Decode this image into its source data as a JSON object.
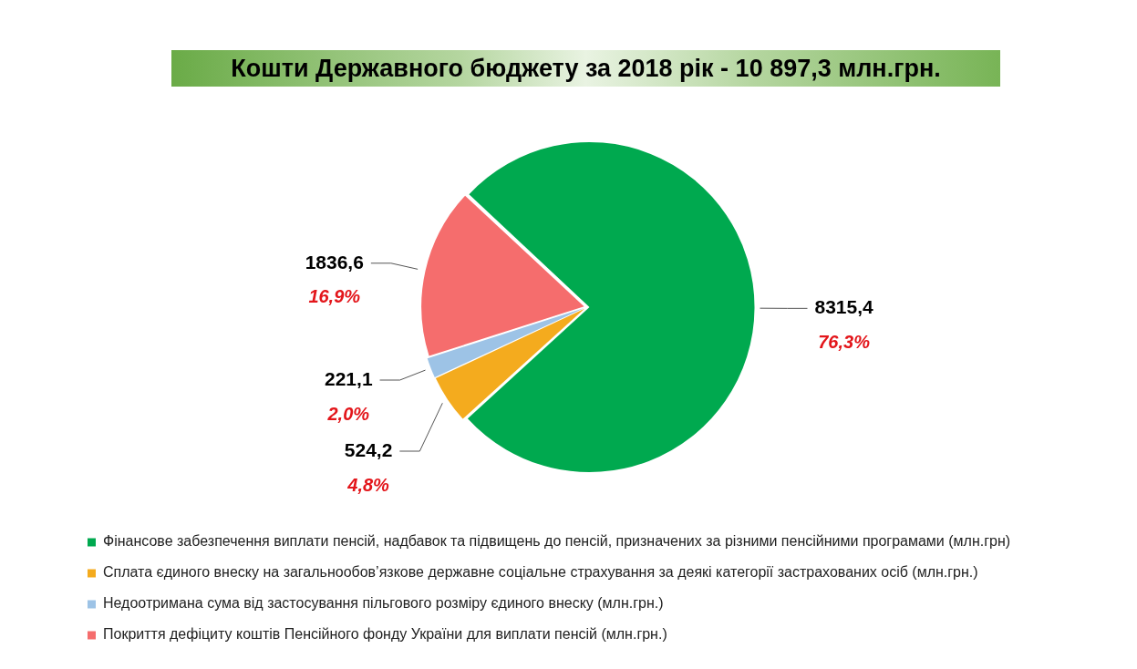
{
  "chart_data": {
    "type": "pie",
    "title": "Кошти Державного бюджету за 2018 рік - 10 897,3 млн.грн.",
    "categories": [
      "Фінансове забезпечення виплати пенсій, надбавок та підвищень до пенсій, призначених за різними пенсійними програмами (млн.грн)",
      "Сплата єдиного внеску на загальнообов’язкове державне соціальне страхування за деякі категорії застрахованих осіб (млн.грн.)",
      "Недоотримана сума від застосування пільгового розміру єдиного внеску (млн.грн.)",
      "Покриття дефіциту коштів Пенсійного фонду України для виплати пенсій (млн.грн.)"
    ],
    "values": [
      8315.4,
      524.2,
      221.1,
      1836.6
    ],
    "colors": [
      "#00a94f",
      "#f4ab1e",
      "#9dc3e6",
      "#f56d6d"
    ],
    "value_labels": [
      "8315,4",
      "524,2",
      "221,1",
      "1836,6"
    ],
    "annotations": [
      "76,3%",
      "4,8%",
      "2,0%",
      "16,9%"
    ],
    "legend": "bottom"
  }
}
